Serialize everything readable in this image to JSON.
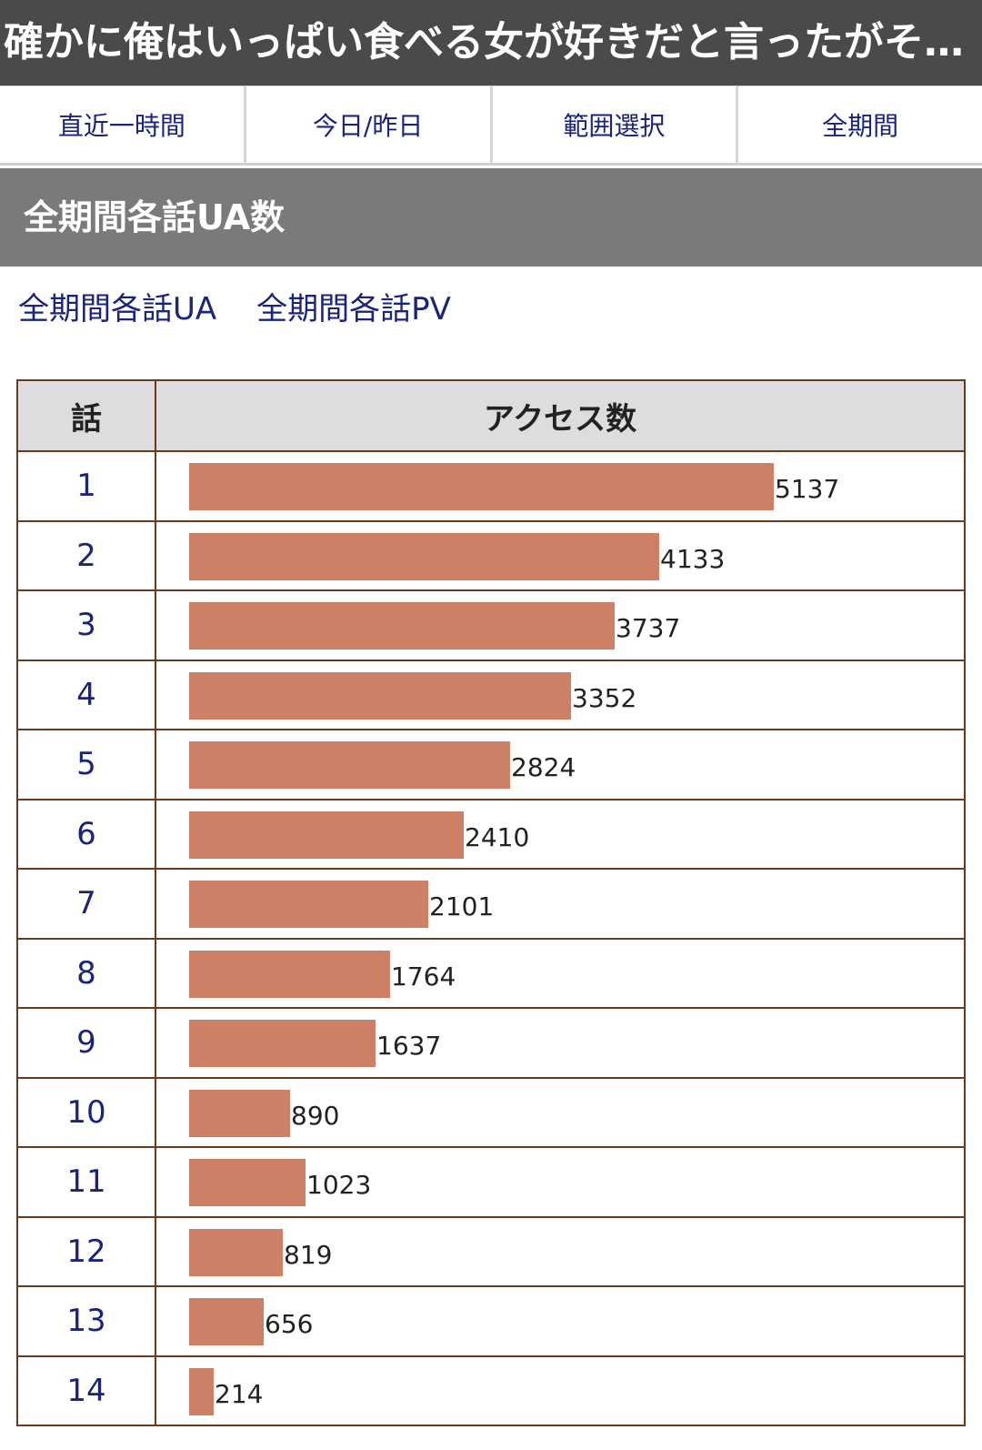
{
  "title": "確かに俺はいっぱい食べる女が好きだと言ったがそ…",
  "tabs": [
    "直近一時間",
    "今日/昨日",
    "範囲選択",
    "全期間"
  ],
  "section_title": "全期間各話UA数",
  "links": [
    "全期間各話UA",
    "全期間各話PV"
  ],
  "table": {
    "header_episode": "話",
    "header_access": "アクセス数"
  },
  "chart_data": {
    "type": "bar",
    "categories": [
      "1",
      "2",
      "3",
      "4",
      "5",
      "6",
      "7",
      "8",
      "9",
      "10",
      "11",
      "12",
      "13",
      "14"
    ],
    "values": [
      5137,
      4133,
      3737,
      3352,
      2824,
      2410,
      2101,
      1764,
      1637,
      890,
      1023,
      819,
      656,
      214
    ],
    "title": "",
    "xlabel": "話",
    "ylabel": "アクセス数"
  },
  "colors": {
    "bar": "#cd8065",
    "link": "#1a237e",
    "title_bg": "#4a4a4a",
    "section_bg": "#7a7a7a",
    "border": "#6b3a1a"
  }
}
